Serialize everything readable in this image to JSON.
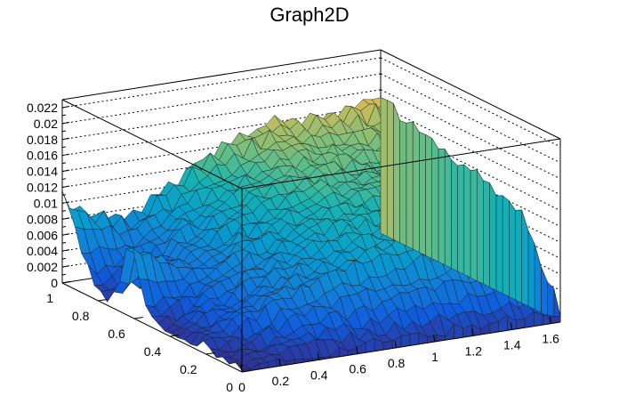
{
  "chart_data": {
    "type": "surface",
    "title": "Graph2D",
    "xlabel": "",
    "ylabel": "",
    "zlabel": "",
    "xlim": [
      0,
      1.65
    ],
    "ylim": [
      0,
      1
    ],
    "zlim": [
      0,
      0.023
    ],
    "grid": true,
    "legend": "none",
    "colormap": "parula",
    "x_ticks": [
      "0",
      "0.2",
      "0.4",
      "0.6",
      "0.8",
      "1",
      "1.2",
      "1.4",
      "1.6"
    ],
    "y_ticks": [
      "0",
      "0.2",
      "0.4",
      "0.6",
      "0.8",
      "1"
    ],
    "z_ticks": [
      "0",
      "0.002",
      "0.004",
      "0.006",
      "0.008",
      "0.01",
      "0.012",
      "0.014",
      "0.016",
      "0.018",
      "0.02",
      "0.022"
    ],
    "surface_features": {
      "peak_high_x_high_y": 0.0185,
      "edge_low_y_low_x": 0.0005,
      "ridge_high_y_low_x": 0.0155,
      "inner_ridge_mid_y": 0.012,
      "valley_level": 0.001
    }
  }
}
